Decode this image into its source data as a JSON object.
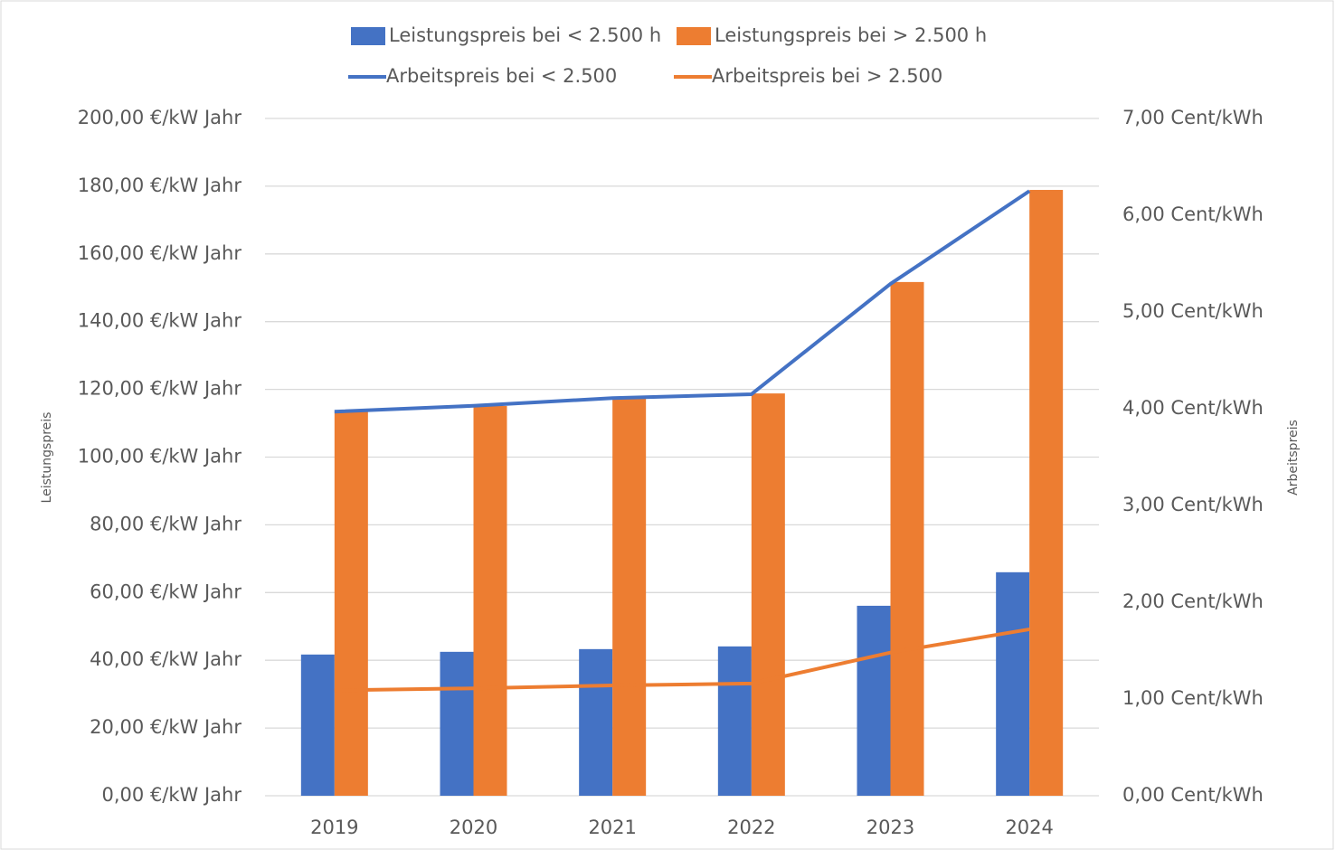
{
  "chart_data": {
    "type": "bar",
    "categories": [
      "2019",
      "2020",
      "2021",
      "2022",
      "2023",
      "2024"
    ],
    "y_label": "Leistungspreis",
    "y2_label": "Arbeitspreis",
    "legend": "top",
    "grid": true,
    "ylim": [
      0,
      200
    ],
    "yticks": [
      {
        "value": 0,
        "label": "0,00 €/kW Jahr"
      },
      {
        "value": 20,
        "label": "20,00 €/kW Jahr"
      },
      {
        "value": 40,
        "label": "40,00 €/kW Jahr"
      },
      {
        "value": 60,
        "label": "60,00 €/kW Jahr"
      },
      {
        "value": 80,
        "label": "80,00 €/kW Jahr"
      },
      {
        "value": 100,
        "label": "100,00 €/kW Jahr"
      },
      {
        "value": 120,
        "label": "120,00 €/kW Jahr"
      },
      {
        "value": 140,
        "label": "140,00 €/kW Jahr"
      },
      {
        "value": 160,
        "label": "160,00 €/kW Jahr"
      },
      {
        "value": 180,
        "label": "180,00 €/kW Jahr"
      },
      {
        "value": 200,
        "label": "200,00 €/kW Jahr"
      }
    ],
    "y2lim": [
      0,
      7
    ],
    "y2ticks": [
      {
        "value": 0,
        "label": "0,00 Cent/kWh"
      },
      {
        "value": 1,
        "label": "1,00 Cent/kWh"
      },
      {
        "value": 2,
        "label": "2,00 Cent/kWh"
      },
      {
        "value": 3,
        "label": "3,00 Cent/kWh"
      },
      {
        "value": 4,
        "label": "4,00 Cent/kWh"
      },
      {
        "value": 5,
        "label": "5,00 Cent/kWh"
      },
      {
        "value": 6,
        "label": "6,00 Cent/kWh"
      },
      {
        "value": 7,
        "label": "7,00 Cent/kWh"
      }
    ],
    "series": [
      {
        "name": "Leistungspreis bei < 2.500 h",
        "type": "bar",
        "color": "#4472c4",
        "values": [
          41.7,
          42.5,
          43.3,
          44.1,
          56.1,
          66.0
        ]
      },
      {
        "name": "Leistungspreis bei > 2.500 h",
        "type": "bar",
        "color": "#ed7d31",
        "values": [
          113.5,
          115.1,
          117.5,
          118.8,
          151.7,
          178.9
        ]
      },
      {
        "name": "Arbeitspreis bei < 2.500",
        "type": "line",
        "axis": "y2",
        "color": "#4472c4",
        "values": [
          3.97,
          4.03,
          4.11,
          4.15,
          5.29,
          6.25
        ]
      },
      {
        "name": "Arbeitspreis bei > 2.500",
        "type": "line",
        "axis": "y2",
        "color": "#ed7d31",
        "values": [
          1.09,
          1.11,
          1.14,
          1.16,
          1.48,
          1.72
        ]
      }
    ]
  }
}
